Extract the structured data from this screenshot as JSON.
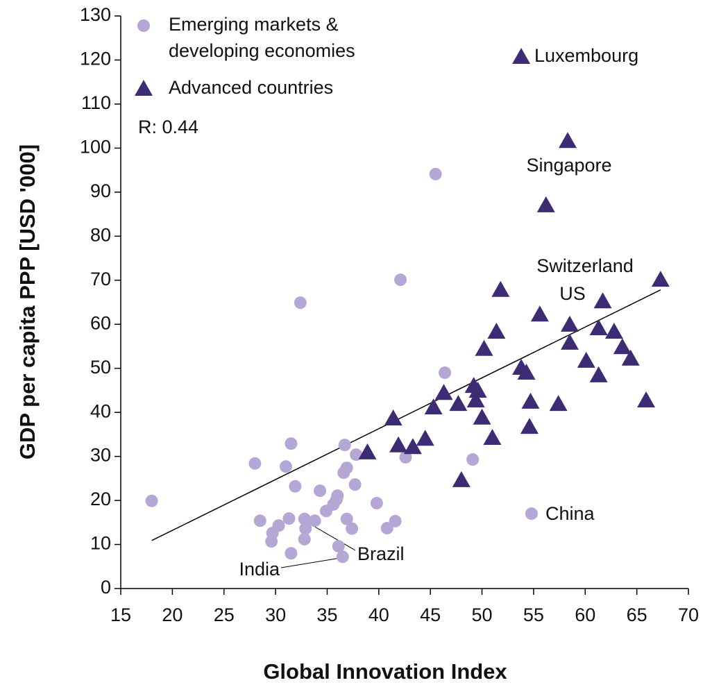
{
  "chart_data": {
    "type": "scatter",
    "xlabel": "Global Innovation Index",
    "ylabel": "GDP per capita PPP [USD '000]",
    "xlim": [
      15,
      70
    ],
    "xticks": [
      15,
      20,
      25,
      30,
      35,
      40,
      45,
      50,
      55,
      60,
      65,
      70
    ],
    "ylim": [
      0,
      130
    ],
    "yticks": [
      0,
      10,
      20,
      30,
      40,
      50,
      60,
      70,
      80,
      90,
      100,
      110,
      120,
      130
    ],
    "legend": "upper left",
    "series": [
      {
        "name": "Emerging markets & developing economies",
        "color": "#b4a7d6",
        "marker": "circle",
        "x": [
          18.0,
          45.5,
          42.1,
          32.4,
          46.4,
          31.5,
          28.0,
          31.0,
          36.7,
          37.8,
          42.6,
          49.1,
          36.9,
          36.6,
          31.9,
          37.7,
          34.3,
          36.0,
          35.9,
          39.8,
          35.6,
          34.9,
          28.5,
          31.3,
          32.8,
          33.8,
          36.9,
          41.6,
          30.3,
          32.9,
          37.4,
          40.8,
          29.7,
          32.8,
          29.6,
          36.1,
          31.5,
          36.5,
          54.8
        ],
        "values": [
          19.9,
          94.1,
          70.1,
          64.9,
          49.0,
          32.9,
          28.4,
          27.7,
          32.6,
          30.4,
          29.8,
          29.3,
          27.4,
          26.3,
          23.2,
          23.6,
          22.2,
          21.1,
          20.2,
          19.4,
          19.1,
          17.6,
          15.4,
          15.9,
          15.8,
          15.4,
          15.8,
          15.3,
          14.3,
          13.6,
          13.6,
          13.7,
          12.6,
          11.2,
          10.7,
          9.6,
          8.0,
          7.2,
          17.0
        ]
      },
      {
        "name": "Advanced countries",
        "color": "#3d2b74",
        "marker": "triangle",
        "x": [
          53.8,
          58.3,
          56.2,
          67.3,
          51.8,
          61.7,
          55.6,
          58.5,
          61.3,
          51.4,
          62.8,
          58.5,
          50.2,
          63.6,
          60.1,
          64.4,
          53.8,
          54.3,
          61.3,
          49.2,
          49.6,
          46.3,
          49.4,
          54.7,
          65.9,
          47.7,
          57.4,
          45.3,
          50.0,
          41.4,
          54.6,
          44.5,
          51.0,
          41.9,
          43.3,
          38.9,
          48.0
        ],
        "values": [
          120.7,
          101.6,
          87.0,
          70.1,
          67.8,
          65.2,
          62.2,
          59.9,
          59.1,
          58.3,
          58.3,
          55.8,
          54.4,
          54.8,
          51.7,
          52.2,
          50.1,
          49.0,
          48.4,
          46.0,
          44.9,
          44.4,
          42.7,
          42.4,
          42.7,
          41.9,
          41.9,
          41.1,
          38.8,
          38.6,
          36.7,
          34.0,
          34.2,
          32.5,
          32.1,
          30.9,
          24.6
        ]
      }
    ],
    "trendline": {
      "x": [
        18.0,
        67.3
      ],
      "values": [
        10.9,
        67.8
      ],
      "color": "#000000"
    },
    "annotations": [
      "Luxembourg",
      "Singapore",
      "Switzerland",
      "US",
      "China",
      "Brazil",
      "India",
      "R: 0.44"
    ]
  }
}
